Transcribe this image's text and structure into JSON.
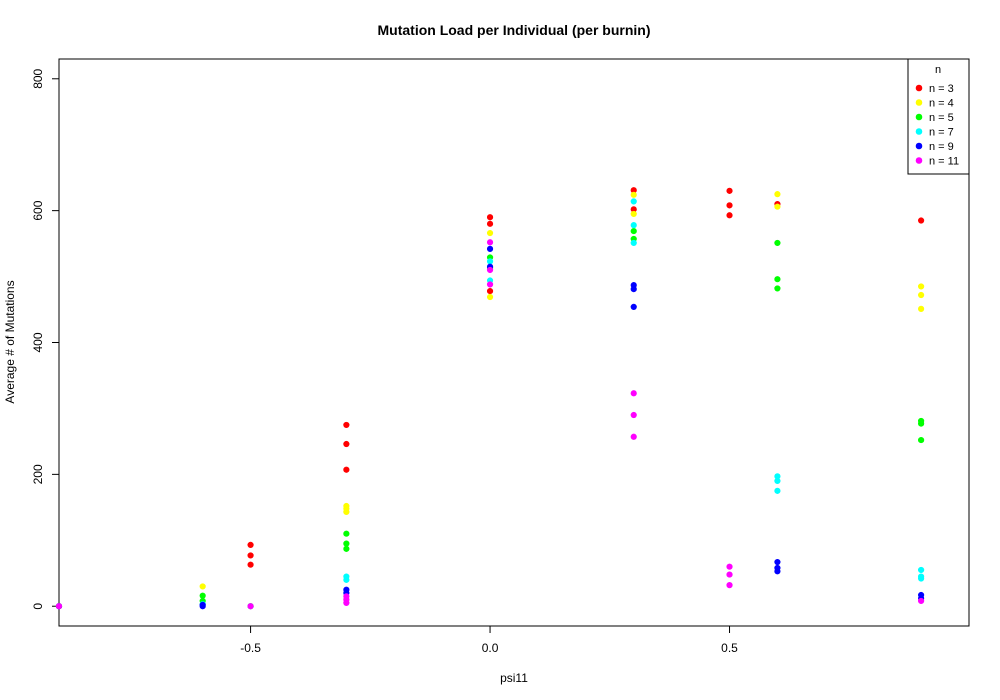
{
  "chart_data": {
    "type": "scatter",
    "title": "Mutation Load per Individual (per burnin)",
    "xlabel": "psi11",
    "ylabel": "Average # of Mutations",
    "xlim": [
      -0.9,
      1.0
    ],
    "ylim": [
      -30,
      830
    ],
    "x_ticks": [
      -0.5,
      0.0,
      0.5
    ],
    "x_tick_labels": [
      "-0.5",
      "0.0",
      "0.5"
    ],
    "y_ticks": [
      0,
      200,
      400,
      600,
      800
    ],
    "y_tick_labels": [
      "0",
      "200",
      "400",
      "600",
      "800"
    ],
    "grid": false,
    "legend": {
      "title": "n",
      "placement": "top-right"
    },
    "series": [
      {
        "name": "n = 3",
        "color": "#ff0000",
        "points": [
          [
            -0.9,
            0
          ],
          [
            -0.5,
            63
          ],
          [
            -0.5,
            77
          ],
          [
            -0.5,
            93
          ],
          [
            -0.3,
            207
          ],
          [
            -0.3,
            246
          ],
          [
            -0.3,
            275
          ],
          [
            0.0,
            478
          ],
          [
            0.0,
            580
          ],
          [
            0.0,
            590
          ],
          [
            0.3,
            602
          ],
          [
            0.3,
            631
          ],
          [
            0.5,
            593
          ],
          [
            0.5,
            608
          ],
          [
            0.5,
            630
          ],
          [
            0.6,
            610
          ],
          [
            0.9,
            585
          ]
        ]
      },
      {
        "name": "n = 4",
        "color": "#ffff00",
        "points": [
          [
            -0.9,
            0
          ],
          [
            -0.6,
            30
          ],
          [
            -0.5,
            0
          ],
          [
            -0.3,
            143
          ],
          [
            -0.3,
            148
          ],
          [
            -0.3,
            152
          ],
          [
            0.0,
            469
          ],
          [
            0.0,
            566
          ],
          [
            0.3,
            595
          ],
          [
            0.3,
            624
          ],
          [
            0.6,
            606
          ],
          [
            0.6,
            625
          ],
          [
            0.9,
            451
          ],
          [
            0.9,
            472
          ],
          [
            0.9,
            485
          ]
        ]
      },
      {
        "name": "n = 5",
        "color": "#00ff00",
        "points": [
          [
            -0.9,
            0
          ],
          [
            -0.6,
            8
          ],
          [
            -0.6,
            16
          ],
          [
            -0.5,
            0
          ],
          [
            -0.3,
            87
          ],
          [
            -0.3,
            95
          ],
          [
            -0.3,
            110
          ],
          [
            0.0,
            513
          ],
          [
            0.0,
            529
          ],
          [
            0.3,
            557
          ],
          [
            0.3,
            569
          ],
          [
            0.6,
            482
          ],
          [
            0.6,
            496
          ],
          [
            0.6,
            551
          ],
          [
            0.9,
            252
          ],
          [
            0.9,
            277
          ],
          [
            0.9,
            281
          ]
        ]
      },
      {
        "name": "n = 7",
        "color": "#00ffff",
        "points": [
          [
            -0.9,
            0
          ],
          [
            -0.6,
            3
          ],
          [
            -0.5,
            0
          ],
          [
            -0.3,
            40
          ],
          [
            -0.3,
            45
          ],
          [
            0.0,
            494
          ],
          [
            0.0,
            523
          ],
          [
            0.3,
            551
          ],
          [
            0.3,
            578
          ],
          [
            0.3,
            614
          ],
          [
            0.6,
            175
          ],
          [
            0.6,
            190
          ],
          [
            0.6,
            197
          ],
          [
            0.9,
            42
          ],
          [
            0.9,
            45
          ],
          [
            0.9,
            55
          ]
        ]
      },
      {
        "name": "n = 9",
        "color": "#0000ff",
        "points": [
          [
            -0.9,
            0
          ],
          [
            -0.6,
            0
          ],
          [
            -0.6,
            2
          ],
          [
            -0.3,
            20
          ],
          [
            -0.3,
            25
          ],
          [
            0.0,
            515
          ],
          [
            0.0,
            542
          ],
          [
            0.3,
            454
          ],
          [
            0.3,
            481
          ],
          [
            0.3,
            487
          ],
          [
            0.6,
            53
          ],
          [
            0.6,
            58
          ],
          [
            0.6,
            67
          ],
          [
            0.9,
            12
          ],
          [
            0.9,
            17
          ]
        ]
      },
      {
        "name": "n = 11",
        "color": "#ff00ff",
        "points": [
          [
            -0.9,
            0
          ],
          [
            -0.5,
            0
          ],
          [
            -0.3,
            5
          ],
          [
            -0.3,
            10
          ],
          [
            -0.3,
            15
          ],
          [
            0.0,
            488
          ],
          [
            0.0,
            510
          ],
          [
            0.0,
            552
          ],
          [
            0.3,
            257
          ],
          [
            0.3,
            290
          ],
          [
            0.3,
            323
          ],
          [
            0.5,
            32
          ],
          [
            0.5,
            48
          ],
          [
            0.5,
            60
          ],
          [
            0.9,
            8
          ]
        ]
      }
    ]
  }
}
